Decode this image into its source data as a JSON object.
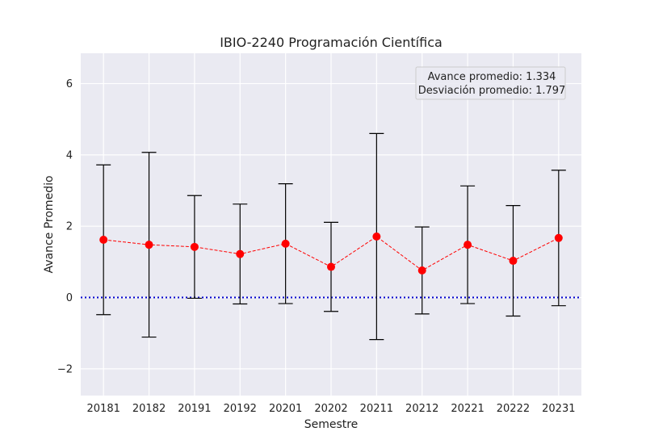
{
  "chart_data": {
    "type": "line",
    "title": "IBIO-2240 Programación Científica",
    "xlabel": "Semestre",
    "ylabel": "Avance Promedio",
    "categories": [
      "20181",
      "20182",
      "20191",
      "20192",
      "20201",
      "20202",
      "20211",
      "20212",
      "20221",
      "20222",
      "20231"
    ],
    "series": [
      {
        "values": [
          1.62,
          1.48,
          1.42,
          1.22,
          1.51,
          0.86,
          1.71,
          0.76,
          1.48,
          1.03,
          1.67
        ],
        "errors": [
          2.1,
          2.59,
          1.44,
          1.4,
          1.68,
          1.25,
          2.89,
          1.22,
          1.65,
          1.55,
          1.9
        ],
        "color": "#ff0000",
        "line_style": "dashed",
        "error_bar_color": "#000000"
      }
    ],
    "reference_line": {
      "y": 0,
      "color": "#0000cc",
      "style": "dotted"
    },
    "annotation": {
      "line1": "Avance promedio: 1.334",
      "line2": "Desviación promedio: 1.797",
      "placement": "top-right"
    },
    "ylim": [
      -2.75,
      6.85
    ],
    "yticks": [
      -2,
      0,
      2,
      4,
      6
    ],
    "ytick_labels": [
      "−2",
      "0",
      "2",
      "4",
      "6"
    ],
    "grid": true,
    "background": "#eaeaf2"
  }
}
